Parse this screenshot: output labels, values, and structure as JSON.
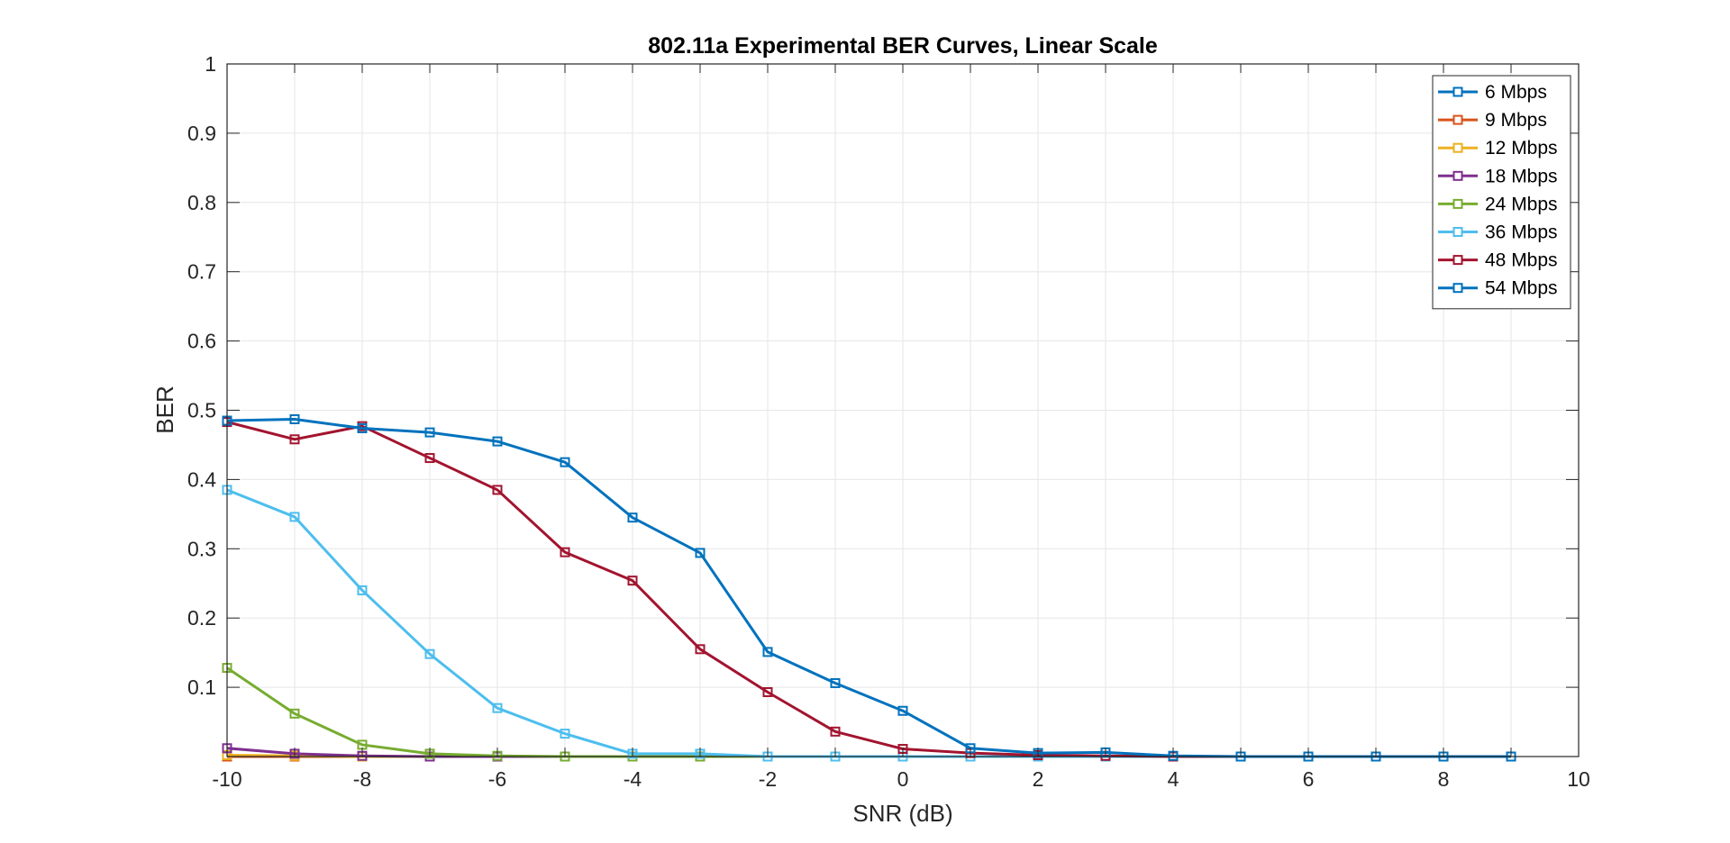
{
  "chart_data": {
    "type": "line",
    "title": "802.11a Experimental BER Curves, Linear Scale",
    "xlabel": "SNR (dB)",
    "ylabel": "BER",
    "xlim": [
      -10,
      10
    ],
    "ylim": [
      0,
      1
    ],
    "xticks": [
      "-10",
      "-8",
      "-6",
      "-4",
      "-2",
      "0",
      "2",
      "4",
      "6",
      "8",
      "10"
    ],
    "yticks": [
      "0.1",
      "0.2",
      "0.3",
      "0.4",
      "0.5",
      "0.6",
      "0.7",
      "0.8",
      "0.9",
      "1"
    ],
    "grid": true,
    "legend_position": "top-right",
    "marker": "square",
    "x": [
      -10,
      -9,
      -8,
      -7,
      -6,
      -5,
      -4,
      -3,
      -2,
      -1,
      0,
      1,
      2,
      3,
      4,
      5,
      6,
      7,
      8,
      9
    ],
    "series": [
      {
        "name": "6 Mbps",
        "color": "#0072BD",
        "values": [
          0,
          0,
          0,
          0,
          0,
          0,
          0,
          0,
          0,
          0,
          0,
          0,
          0,
          0,
          0,
          0,
          0,
          0,
          0,
          0
        ]
      },
      {
        "name": "9 Mbps",
        "color": "#D95319",
        "values": [
          0,
          0,
          0,
          0,
          0,
          0,
          0,
          0,
          0,
          0,
          0,
          0,
          0,
          0,
          0,
          0,
          0,
          0,
          0,
          0
        ]
      },
      {
        "name": "12 Mbps",
        "color": "#EDB120",
        "values": [
          0.002,
          0.001,
          0,
          0,
          0,
          0,
          0,
          0,
          0,
          0,
          0,
          0,
          0,
          0,
          0,
          0,
          0,
          0,
          0,
          0
        ]
      },
      {
        "name": "18 Mbps",
        "color": "#7E2F8E",
        "values": [
          0.012,
          0.004,
          0.001,
          0,
          0,
          0,
          0,
          0,
          0,
          0,
          0,
          0,
          0,
          0,
          0,
          0,
          0,
          0,
          0,
          0
        ]
      },
      {
        "name": "24 Mbps",
        "color": "#77AC30",
        "values": [
          0.128,
          0.062,
          0.017,
          0.004,
          0.001,
          0,
          0,
          0,
          0,
          0,
          0,
          0,
          0,
          0,
          0,
          0,
          0,
          0,
          0,
          0
        ]
      },
      {
        "name": "36 Mbps",
        "color": "#4DBEEE",
        "values": [
          0.385,
          0.346,
          0.24,
          0.148,
          0.07,
          0.033,
          0.004,
          0.004,
          0,
          0,
          0,
          0,
          0,
          0,
          0,
          0,
          0,
          0,
          0,
          0
        ]
      },
      {
        "name": "48 Mbps",
        "color": "#A2142F",
        "values": [
          0.483,
          0.458,
          0.477,
          0.431,
          0.385,
          0.295,
          0.254,
          0.155,
          0.093,
          0.036,
          0.011,
          0.005,
          0.002,
          0.001,
          0,
          0,
          0,
          0,
          0,
          0
        ]
      },
      {
        "name": "54 Mbps",
        "color": "#0072BD",
        "values": [
          0.485,
          0.487,
          0.474,
          0.468,
          0.455,
          0.425,
          0.345,
          0.294,
          0.151,
          0.106,
          0.066,
          0.012,
          0.005,
          0.006,
          0.001,
          0,
          0,
          0,
          0,
          0
        ]
      }
    ]
  }
}
